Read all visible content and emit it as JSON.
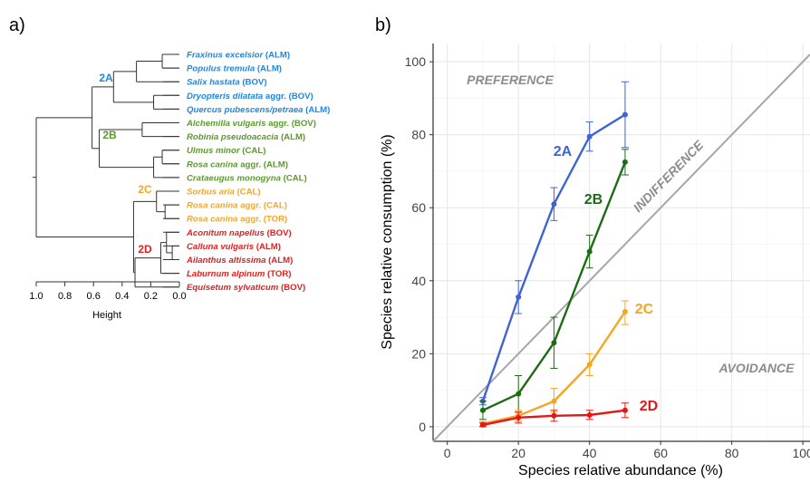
{
  "panels": {
    "a": "a)",
    "b": "b)"
  },
  "dendrogram": {
    "axis_label": "Height",
    "ticks": [
      "1.0",
      "0.8",
      "0.6",
      "0.4",
      "0.2",
      "0.0"
    ],
    "tick_values": [
      1.0,
      0.8,
      0.6,
      0.4,
      0.2,
      0.0
    ],
    "groups": [
      {
        "label": "2A",
        "color": "#1f86e0"
      },
      {
        "label": "2B",
        "color": "#5a9a2c"
      },
      {
        "label": "2C",
        "color": "#f5a623"
      },
      {
        "label": "2D",
        "color": "#e01e1e"
      }
    ],
    "leaves": [
      {
        "species": "Fraxinus excelsior",
        "suffix": " (ALM)",
        "group": 0
      },
      {
        "species": "Populus tremula",
        "suffix": " (ALM)",
        "group": 0
      },
      {
        "species": "Salix hastata",
        "suffix": " (BOV)",
        "group": 0
      },
      {
        "species": "Dryopteris dilatata",
        "suffix": " aggr. (BOV)",
        "group": 0
      },
      {
        "species": "Quercus pubescens/petraea",
        "suffix": " (ALM)",
        "group": 0
      },
      {
        "species": "Alchemilla vulgaris",
        "suffix": " aggr. (BOV)",
        "group": 1
      },
      {
        "species": "Robinia pseudoacacia",
        "suffix": " (ALM)",
        "group": 1
      },
      {
        "species": "Ulmus minor",
        "suffix": " (CAL)",
        "group": 1
      },
      {
        "species": "Rosa canina",
        "suffix": " aggr. (ALM)",
        "group": 1
      },
      {
        "species": "Crataeugus monogyna",
        "suffix": " (CAL)",
        "group": 1
      },
      {
        "species": "Sorbus aria",
        "suffix": " (CAL)",
        "group": 2
      },
      {
        "species": "Rosa canina",
        "suffix": " aggr. (CAL)",
        "group": 2
      },
      {
        "species": "Rosa canina",
        "suffix": " aggr. (TOR)",
        "group": 2
      },
      {
        "species": "Aconitum napellus",
        "suffix": " (BOV)",
        "group": 3
      },
      {
        "species": "Calluna vulgaris",
        "suffix": " (ALM)",
        "group": 3
      },
      {
        "species": "Ailanthus altissima",
        "suffix": " (ALM)",
        "group": 3
      },
      {
        "species": "Laburnum alpinum",
        "suffix": " (TOR)",
        "group": 3
      },
      {
        "species": "Equisetum sylvaticum",
        "suffix": " (BOV)",
        "group": 3
      }
    ]
  },
  "chart_data": {
    "type": "line",
    "xlabel": "Species relative abundance (%)",
    "ylabel": "Species relative consumption (%)",
    "xlim": [
      -4,
      102
    ],
    "ylim": [
      -4,
      105
    ],
    "xticks": [
      0,
      20,
      40,
      60,
      80,
      100
    ],
    "yticks": [
      0,
      20,
      40,
      60,
      80,
      100
    ],
    "grid": true,
    "reference_line": {
      "label": "INDIFFERENCE",
      "color": "#a6a6a6",
      "slope": 1
    },
    "annotations": [
      {
        "text": "PREFERENCE",
        "color": "#8c8c8c"
      },
      {
        "text": "AVOIDANCE",
        "color": "#8c8c8c"
      }
    ],
    "x": [
      10,
      20,
      30,
      40,
      50
    ],
    "series": [
      {
        "name": "2A",
        "color": "#3f63d4",
        "values": [
          7,
          35.5,
          61,
          79.5,
          85.5
        ],
        "error_low": [
          6,
          31,
          56.5,
          75.5,
          76.5
        ],
        "error_high": [
          8,
          40,
          65.5,
          83.5,
          94.5
        ]
      },
      {
        "name": "2B",
        "color": "#1d6b15",
        "values": [
          4.5,
          9,
          23,
          48,
          72.5
        ],
        "error_low": [
          2,
          4,
          16,
          43.5,
          69
        ],
        "error_high": [
          7,
          14,
          30,
          52.5,
          76
        ]
      },
      {
        "name": "2C",
        "color": "#f5a623",
        "values": [
          0.8,
          3,
          7,
          17,
          31.5
        ],
        "error_low": [
          0.2,
          1.5,
          4,
          14,
          28
        ],
        "error_high": [
          1.4,
          4.5,
          10.5,
          20,
          34.5
        ]
      },
      {
        "name": "2D",
        "color": "#e51616",
        "values": [
          0.5,
          2.5,
          3,
          3.2,
          4.5
        ],
        "error_low": [
          0,
          1,
          1.5,
          2,
          2.5
        ],
        "error_high": [
          1,
          4,
          4.5,
          4.5,
          6.5
        ]
      }
    ]
  }
}
